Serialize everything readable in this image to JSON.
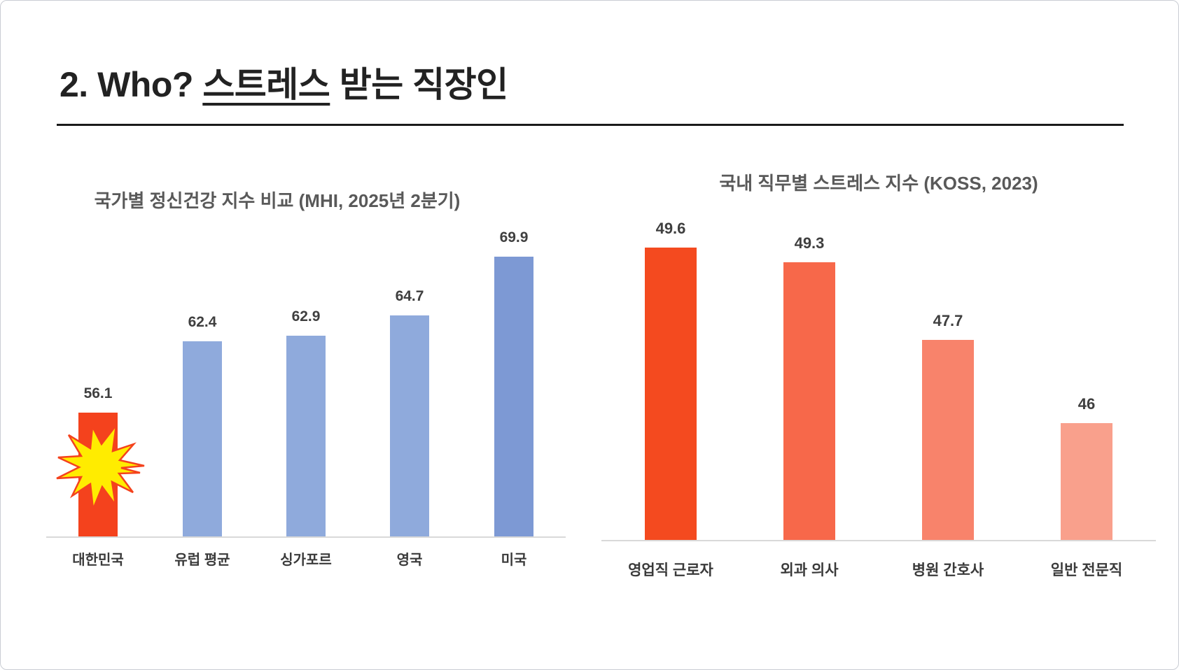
{
  "slide": {
    "title_prefix": "2. Who? ",
    "title_underlined": "스트레스",
    "title_suffix": " 받는 직장인"
  },
  "colors": {
    "title_text": "#222222",
    "title_rule": "#1a1a1a",
    "chart_title": "#595959",
    "value_label": "#3f3f3f",
    "category_label": "#3a3a3a",
    "axis_line": "#d9d9d9",
    "korea_highlight_bar": "#f4421d",
    "default_blue_bar": "#8faadc",
    "us_blue_bar": "#7d99d4",
    "star_fill": "#ffec00",
    "star_stroke": "#f4421d"
  },
  "chart_data": [
    {
      "type": "bar",
      "title": "국가별 정신건강 지수 비교 (MHI, 2025년 2분기)",
      "categories": [
        "대한민국",
        "유럽 평균",
        "싱가포르",
        "영국",
        "미국"
      ],
      "values": [
        56.1,
        62.4,
        62.9,
        64.7,
        69.9
      ],
      "value_labels": [
        "56.1",
        "62.4",
        "62.9",
        "64.7",
        "69.9"
      ],
      "bar_colors": [
        "#f4421d",
        "#8faadc",
        "#8faadc",
        "#8faadc",
        "#7d99d4"
      ],
      "ylim": [
        45.1,
        74
      ],
      "xlabel": "",
      "ylabel": "",
      "grid": false,
      "legend": false,
      "annotations": [
        {
          "type": "starburst-highlight",
          "target_category": "대한민국",
          "fill": "#ffec00",
          "stroke": "#f4421d"
        }
      ]
    },
    {
      "type": "bar",
      "title": "국내 직무별 스트레스 지수 (KOSS, 2023)",
      "categories": [
        "영업직 근로자",
        "외과 의사",
        "병원 간호사",
        "일반 전문직"
      ],
      "values": [
        49.6,
        49.3,
        47.7,
        46
      ],
      "value_labels": [
        "49.6",
        "49.3",
        "47.7",
        "46"
      ],
      "bar_colors": [
        "#f44a1f",
        "#f7684a",
        "#f8836b",
        "#f9a08c"
      ],
      "ylim": [
        43.6,
        50
      ],
      "xlabel": "",
      "ylabel": "",
      "grid": false,
      "legend": false
    }
  ]
}
